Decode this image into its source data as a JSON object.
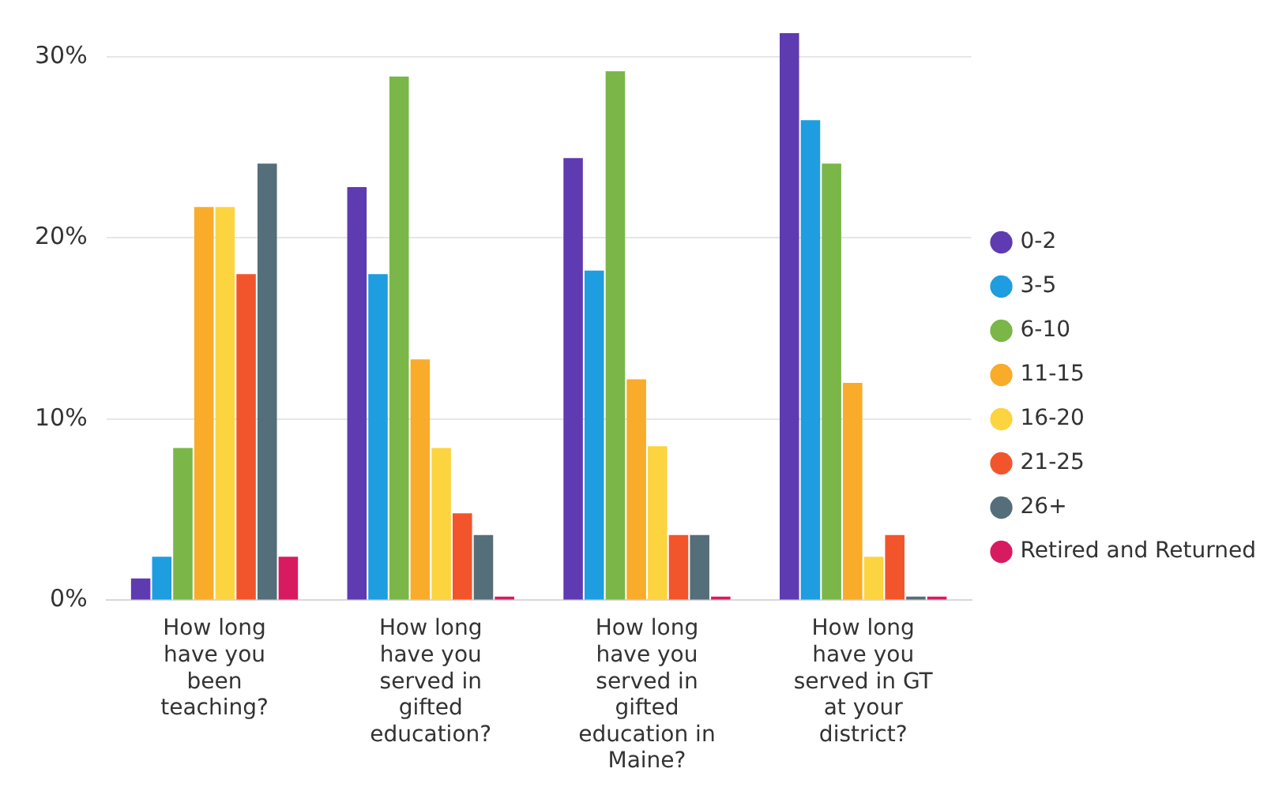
{
  "chart_data": {
    "type": "bar",
    "categories": [
      "How long have you been teaching?",
      "How long have you served in gifted education?",
      "How long have you served in gifted education in Maine?",
      "How long have you served in GT at your district?"
    ],
    "series": [
      {
        "name": "0-2",
        "color": "#5e3bb0",
        "values": [
          1.2,
          22.8,
          24.4,
          31.3
        ]
      },
      {
        "name": "3-5",
        "color": "#1e9de0",
        "values": [
          2.4,
          18.0,
          18.2,
          26.5
        ]
      },
      {
        "name": "6-10",
        "color": "#7ab648",
        "values": [
          8.4,
          28.9,
          29.2,
          24.1
        ]
      },
      {
        "name": "11-15",
        "color": "#f9ab2a",
        "values": [
          21.7,
          13.3,
          12.2,
          12.0
        ]
      },
      {
        "name": "16-20",
        "color": "#fcd440",
        "values": [
          21.7,
          8.4,
          8.5,
          2.4
        ]
      },
      {
        "name": "21-25",
        "color": "#f2552c",
        "values": [
          18.0,
          4.8,
          3.6,
          3.6
        ]
      },
      {
        "name": "26+",
        "color": "#546e7a",
        "values": [
          24.1,
          3.6,
          3.6,
          0.2
        ]
      },
      {
        "name": "Retired and Returned",
        "color": "#d81b60",
        "values": [
          2.4,
          0.2,
          0.2,
          0.2
        ]
      }
    ],
    "ylim": [
      0,
      31.3
    ],
    "yticks": [
      {
        "value": 0,
        "label": "0%"
      },
      {
        "value": 10,
        "label": "10%"
      },
      {
        "value": 20,
        "label": "20%"
      },
      {
        "value": 30,
        "label": "30%"
      }
    ],
    "grid": "y",
    "legend": "right"
  }
}
